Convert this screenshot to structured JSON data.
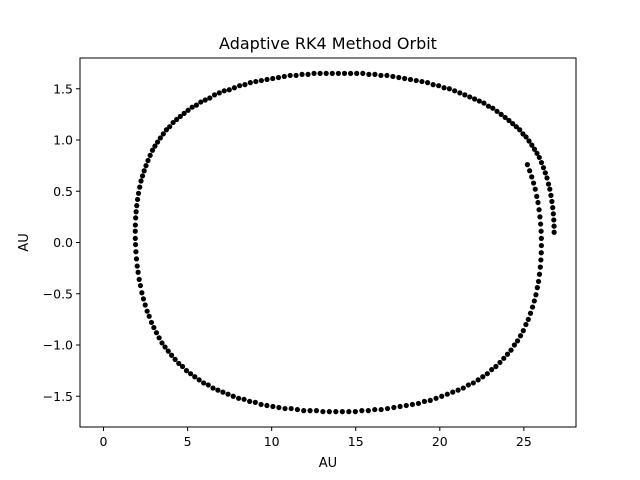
{
  "chart_data": {
    "type": "scatter",
    "title": "Adaptive RK4 Method Orbit",
    "xlabel": "AU",
    "ylabel": "AU",
    "xlim": [
      -1.4,
      28.1
    ],
    "ylim": [
      -1.8,
      1.8
    ],
    "xticks": [
      0,
      5,
      10,
      15,
      20,
      25
    ],
    "yticks": [
      -1.5,
      -1.0,
      -0.5,
      0.0,
      0.5,
      1.0,
      1.5
    ],
    "xtick_labels": [
      "0",
      "5",
      "10",
      "15",
      "20",
      "25"
    ],
    "ytick_labels": [
      "−1.5",
      "−1.0",
      "−0.5",
      "0.0",
      "0.5",
      "1.0",
      "1.5"
    ],
    "grid": false,
    "marker_color": "#000000",
    "series": [
      {
        "x": [
          26.8,
          26.795,
          26.779,
          26.752,
          26.715,
          26.668,
          26.61,
          26.541,
          26.463,
          26.374,
          26.275,
          26.166,
          26.047,
          25.918,
          25.779,
          25.631,
          25.473,
          25.306,
          25.13,
          24.944,
          24.75,
          24.547,
          24.335,
          24.114,
          23.886,
          23.649,
          23.404,
          23.152,
          22.892,
          22.625,
          22.351,
          22.07,
          21.782,
          21.488,
          21.188,
          20.882,
          20.57,
          20.253,
          19.931,
          19.604,
          19.273,
          18.938,
          18.599,
          18.256,
          17.91,
          17.561,
          17.209,
          16.855,
          16.498,
          16.14,
          15.78,
          15.419,
          15.057,
          14.694,
          14.331,
          13.967,
          13.605,
          13.242,
          12.881,
          12.521,
          12.163,
          11.806,
          11.452,
          11.1,
          10.751,
          10.405,
          10.062,
          9.723,
          9.388,
          9.057,
          8.731,
          8.41,
          8.094,
          7.783,
          7.478,
          7.179,
          6.886,
          6.6,
          6.32,
          6.047,
          5.781,
          5.523,
          5.272,
          5.028,
          4.793,
          4.566,
          4.347,
          4.136,
          3.934,
          3.74,
          3.556,
          3.38,
          3.214,
          3.057,
          2.91,
          2.772,
          2.644,
          2.526,
          2.417,
          2.318,
          2.23,
          2.151,
          2.082,
          2.024,
          1.976,
          1.938,
          1.91,
          1.893,
          1.886,
          1.889,
          1.902,
          1.925,
          1.959,
          2.003,
          2.057,
          2.121,
          2.196,
          2.28,
          2.374,
          2.478,
          2.592,
          2.716,
          2.849,
          2.992,
          3.145,
          3.307,
          3.478,
          3.659,
          3.849,
          4.048,
          4.256,
          4.473,
          4.699,
          4.933,
          5.176,
          5.427,
          5.686,
          5.953,
          6.228,
          6.511,
          6.801,
          7.099,
          7.404,
          7.715,
          8.034,
          8.359,
          8.69,
          9.027,
          9.37,
          9.718,
          10.072,
          10.43,
          10.793,
          11.16,
          11.531,
          11.905,
          12.283,
          12.663,
          13.046,
          13.43,
          13.816,
          14.203,
          14.59
        ],
        "y": [
          0.1,
          0.16,
          0.22,
          0.28,
          0.34,
          0.4,
          0.46,
          0.52,
          0.57,
          0.63,
          0.68,
          0.73,
          0.78,
          0.83,
          0.87,
          0.91,
          0.95,
          0.99,
          1.03,
          1.06,
          1.1,
          1.13,
          1.16,
          1.19,
          1.22,
          1.25,
          1.28,
          1.31,
          1.33,
          1.36,
          1.38,
          1.4,
          1.42,
          1.44,
          1.46,
          1.48,
          1.5,
          1.51,
          1.53,
          1.54,
          1.56,
          1.57,
          1.58,
          1.59,
          1.6,
          1.61,
          1.62,
          1.63,
          1.63,
          1.64,
          1.64,
          1.65,
          1.65,
          1.65,
          1.65,
          1.65,
          1.65,
          1.65,
          1.65,
          1.65,
          1.64,
          1.64,
          1.63,
          1.63,
          1.62,
          1.61,
          1.6,
          1.59,
          1.58,
          1.57,
          1.56,
          1.54,
          1.53,
          1.51,
          1.49,
          1.48,
          1.46,
          1.44,
          1.41,
          1.39,
          1.37,
          1.34,
          1.32,
          1.29,
          1.26,
          1.23,
          1.2,
          1.17,
          1.13,
          1.1,
          1.06,
          1.02,
          0.98,
          0.94,
          0.9,
          0.85,
          0.8,
          0.75,
          0.7,
          0.65,
          0.6,
          0.54,
          0.48,
          0.42,
          0.36,
          0.3,
          0.24,
          0.17,
          0.11,
          0.04,
          -0.02,
          -0.09,
          -0.16,
          -0.23,
          -0.29,
          -0.36,
          -0.42,
          -0.49,
          -0.55,
          -0.61,
          -0.67,
          -0.72,
          -0.78,
          -0.83,
          -0.88,
          -0.93,
          -0.98,
          -1.02,
          -1.06,
          -1.1,
          -1.14,
          -1.18,
          -1.21,
          -1.25,
          -1.28,
          -1.31,
          -1.34,
          -1.37,
          -1.39,
          -1.42,
          -1.44,
          -1.46,
          -1.48,
          -1.5,
          -1.52,
          -1.53,
          -1.55,
          -1.56,
          -1.58,
          -1.59,
          -1.6,
          -1.61,
          -1.62,
          -1.62,
          -1.63,
          -1.64,
          -1.64,
          -1.64,
          -1.65,
          -1.65,
          -1.65,
          -1.65,
          -1.65
        ]
      },
      {
        "x": [
          14.977,
          15.363,
          15.748,
          16.131,
          16.512,
          16.89,
          17.266,
          17.638,
          18.006,
          18.37,
          18.73,
          19.084,
          19.433,
          19.777,
          20.115,
          20.446,
          20.77,
          21.088,
          21.398,
          21.7,
          21.994,
          22.28,
          22.557,
          22.826,
          23.086,
          23.336,
          23.576,
          23.806,
          24.026,
          24.236,
          24.435,
          24.623,
          24.8,
          24.966,
          25.12,
          25.263,
          25.394,
          25.514,
          25.621,
          25.717,
          25.8,
          25.872,
          25.93,
          25.977,
          26.011,
          26.033,
          26.042,
          26.039,
          26.024,
          25.996,
          25.956,
          25.904,
          25.84,
          25.764,
          25.676,
          25.577,
          25.466,
          25.343,
          25.21
        ],
        "y": [
          -1.65,
          -1.64,
          -1.64,
          -1.63,
          -1.63,
          -1.62,
          -1.61,
          -1.6,
          -1.59,
          -1.58,
          -1.57,
          -1.55,
          -1.54,
          -1.52,
          -1.5,
          -1.48,
          -1.46,
          -1.44,
          -1.42,
          -1.39,
          -1.37,
          -1.34,
          -1.31,
          -1.28,
          -1.24,
          -1.21,
          -1.17,
          -1.13,
          -1.09,
          -1.05,
          -1.0,
          -0.96,
          -0.91,
          -0.86,
          -0.8,
          -0.75,
          -0.69,
          -0.63,
          -0.57,
          -0.51,
          -0.44,
          -0.38,
          -0.31,
          -0.24,
          -0.17,
          -0.1,
          -0.03,
          0.04,
          0.11,
          0.18,
          0.25,
          0.32,
          0.39,
          0.45,
          0.52,
          0.58,
          0.64,
          0.7,
          0.76
        ]
      }
    ]
  }
}
